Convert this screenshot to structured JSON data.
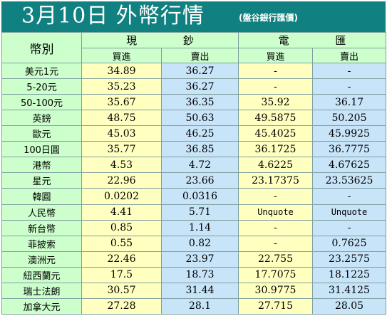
{
  "header": {
    "title": "3月10日 外幣行情",
    "subtitle": "(盤谷銀行匯價)"
  },
  "table": {
    "currency_col": "幣別",
    "group_cash": "現  鈔",
    "group_wire": "電  匯",
    "buy": "買進",
    "sell": "賣出",
    "rows": [
      {
        "name": "美元1元",
        "cash_buy": "34.89",
        "cash_sell": "36.27",
        "wire_buy": "-",
        "wire_sell": "-"
      },
      {
        "name": "5-20元",
        "cash_buy": "35.23",
        "cash_sell": "36.27",
        "wire_buy": "-",
        "wire_sell": "-"
      },
      {
        "name": "50-100元",
        "cash_buy": "35.67",
        "cash_sell": "36.35",
        "wire_buy": "35.92",
        "wire_sell": "36.17"
      },
      {
        "name": "英鎊",
        "cash_buy": "48.75",
        "cash_sell": "50.63",
        "wire_buy": "49.5875",
        "wire_sell": "50.205"
      },
      {
        "name": "歐元",
        "cash_buy": "45.03",
        "cash_sell": "46.25",
        "wire_buy": "45.4025",
        "wire_sell": "45.9925"
      },
      {
        "name": "100日圓",
        "cash_buy": "35.77",
        "cash_sell": "36.85",
        "wire_buy": "36.1725",
        "wire_sell": "36.7775"
      },
      {
        "name": "港幣",
        "cash_buy": "4.53",
        "cash_sell": "4.72",
        "wire_buy": "4.6225",
        "wire_sell": "4.67625"
      },
      {
        "name": "星元",
        "cash_buy": "22.96",
        "cash_sell": "23.66",
        "wire_buy": "23.17375",
        "wire_sell": "23.53625"
      },
      {
        "name": "韓圓",
        "cash_buy": "0.0202",
        "cash_sell": "0.0316",
        "wire_buy": "-",
        "wire_sell": "-"
      },
      {
        "name": "人民幣",
        "cash_buy": "4.41",
        "cash_sell": "5.71",
        "wire_buy": "Unquote",
        "wire_sell": "Unquote"
      },
      {
        "name": "新台幣",
        "cash_buy": "0.85",
        "cash_sell": "1.14",
        "wire_buy": "-",
        "wire_sell": "-"
      },
      {
        "name": "菲披索",
        "cash_buy": "0.55",
        "cash_sell": "0.82",
        "wire_buy": "-",
        "wire_sell": "0.7625"
      },
      {
        "name": "澳洲元",
        "cash_buy": "22.46",
        "cash_sell": "23.97",
        "wire_buy": "22.755",
        "wire_sell": "23.2575"
      },
      {
        "name": "紐西蘭元",
        "cash_buy": "17.5",
        "cash_sell": "18.73",
        "wire_buy": "17.7075",
        "wire_sell": "18.1225"
      },
      {
        "name": "瑞士法朗",
        "cash_buy": "30.57",
        "cash_sell": "31.44",
        "wire_buy": "30.9775",
        "wire_sell": "31.4125"
      },
      {
        "name": "加拿大元",
        "cash_buy": "27.28",
        "cash_sell": "28.1",
        "wire_buy": "27.715",
        "wire_sell": "28.05"
      }
    ]
  }
}
